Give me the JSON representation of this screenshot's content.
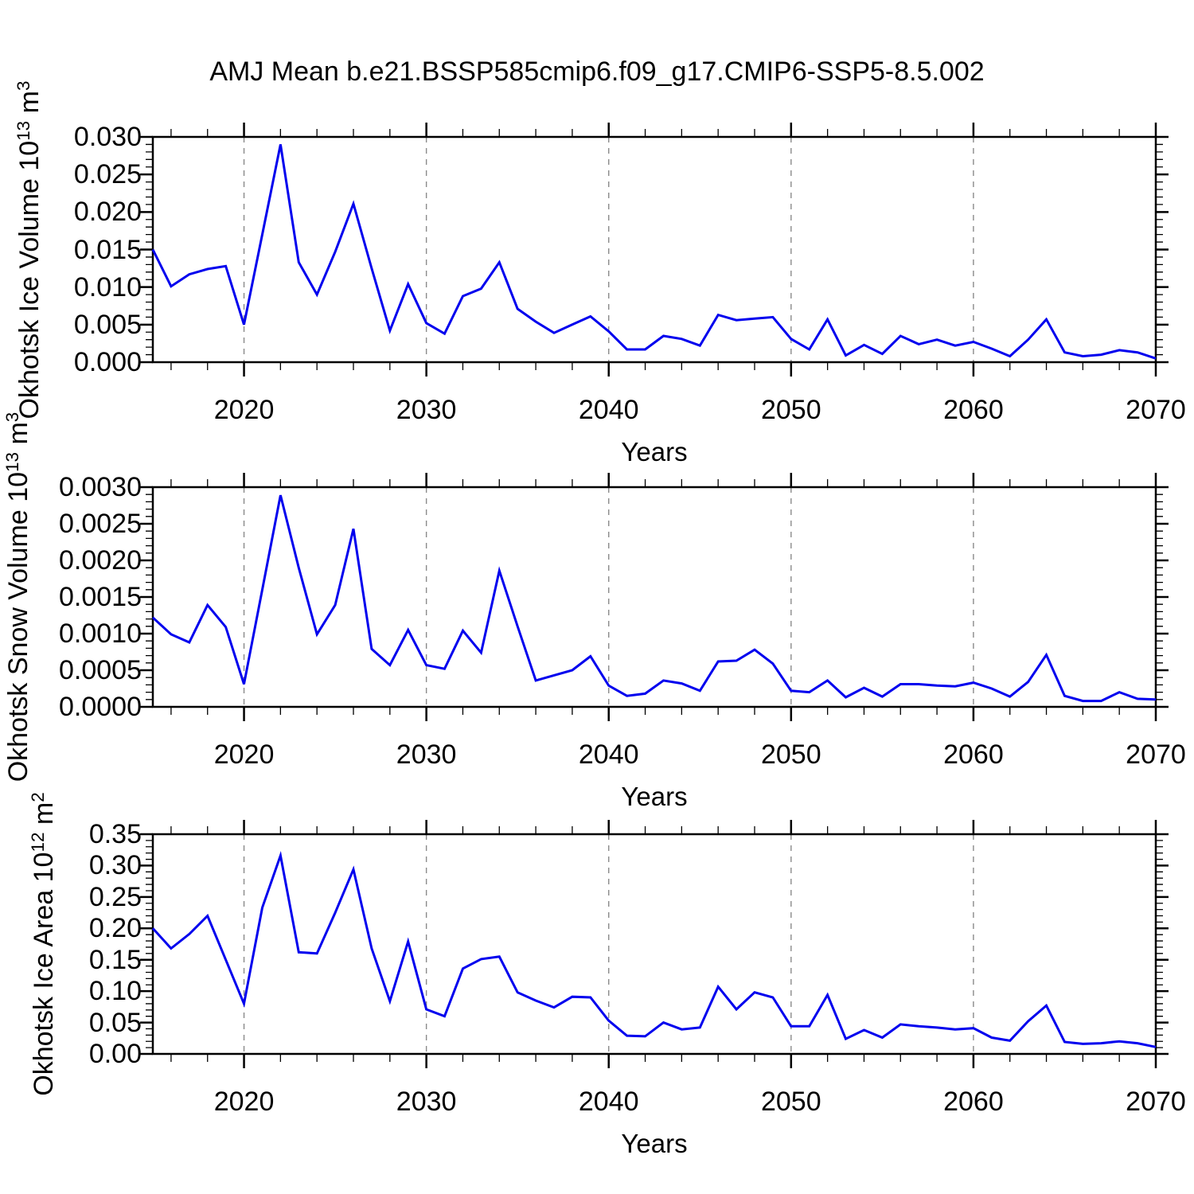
{
  "title": "AMJ Mean b.e21.BSSP585cmip6.f09_g17.CMIP6-SSP5-8.5.002",
  "style": {
    "line_color": "#0000EE",
    "grid_color": "#8a8a8a",
    "axis_color": "#000000",
    "background": "#ffffff"
  },
  "chart_data": [
    {
      "type": "line",
      "xlabel": "Years",
      "ylabel": "Okhotsk Ice Volume 10^13 m^3",
      "ylabel_parts": [
        {
          "t": "Okhotsk Ice Volume 10"
        },
        {
          "t": "13",
          "sup": true
        },
        {
          "t": " m"
        },
        {
          "t": "3",
          "sup": true
        }
      ],
      "xlim": [
        2015,
        2070
      ],
      "ylim": [
        0,
        0.03
      ],
      "xticks": [
        2020,
        2030,
        2040,
        2050,
        2060,
        2070
      ],
      "xtick_labels": [
        "2020",
        "2030",
        "2040",
        "2050",
        "2060",
        "2070"
      ],
      "x_minor_step": 2,
      "yticks": [
        0.0,
        0.005,
        0.01,
        0.015,
        0.02,
        0.025,
        0.03
      ],
      "ytick_labels": [
        "0.000",
        "0.005",
        "0.010",
        "0.015",
        "0.020",
        "0.025",
        "0.030"
      ],
      "y_minor_step": 0.001,
      "gridlines_x": [
        2020,
        2030,
        2040,
        2050,
        2060
      ],
      "grid_dashed": true,
      "legend": "none",
      "years": [
        2015,
        2016,
        2017,
        2018,
        2019,
        2020,
        2021,
        2022,
        2023,
        2024,
        2025,
        2026,
        2027,
        2028,
        2029,
        2030,
        2031,
        2032,
        2033,
        2034,
        2035,
        2036,
        2037,
        2038,
        2039,
        2040,
        2041,
        2042,
        2043,
        2044,
        2045,
        2046,
        2047,
        2048,
        2049,
        2050,
        2051,
        2052,
        2053,
        2054,
        2055,
        2056,
        2057,
        2058,
        2059,
        2060,
        2061,
        2062,
        2063,
        2064,
        2065,
        2066,
        2067,
        2068,
        2069,
        2070
      ],
      "values": [
        0.015,
        0.0101,
        0.0117,
        0.0124,
        0.0128,
        0.005,
        0.017,
        0.029,
        0.0133,
        0.009,
        0.0147,
        0.0211,
        0.0125,
        0.0042,
        0.0104,
        0.0052,
        0.0038,
        0.0088,
        0.0098,
        0.0133,
        0.0071,
        0.0054,
        0.0039,
        0.005,
        0.0061,
        0.0041,
        0.0017,
        0.0017,
        0.0035,
        0.0031,
        0.0022,
        0.0063,
        0.0056,
        0.0058,
        0.006,
        0.0031,
        0.0017,
        0.0057,
        0.0009,
        0.0023,
        0.0011,
        0.0035,
        0.0024,
        0.003,
        0.0022,
        0.0027,
        0.0018,
        0.0008,
        0.003,
        0.0057,
        0.0013,
        0.0008,
        0.001,
        0.0016,
        0.0013,
        0.0005
      ]
    },
    {
      "type": "line",
      "xlabel": "Years",
      "ylabel": "Okhotsk Snow Volume 10^13 m^3",
      "ylabel_parts": [
        {
          "t": "Okhotsk Snow Volume 10"
        },
        {
          "t": "13",
          "sup": true
        },
        {
          "t": " m"
        },
        {
          "t": "3",
          "sup": true
        }
      ],
      "xlim": [
        2015,
        2070
      ],
      "ylim": [
        0,
        0.003
      ],
      "xticks": [
        2020,
        2030,
        2040,
        2050,
        2060,
        2070
      ],
      "xtick_labels": [
        "2020",
        "2030",
        "2040",
        "2050",
        "2060",
        "2070"
      ],
      "x_minor_step": 2,
      "yticks": [
        0.0,
        0.0005,
        0.001,
        0.0015,
        0.002,
        0.0025,
        0.003
      ],
      "ytick_labels": [
        "0.0000",
        "0.0005",
        "0.0010",
        "0.0015",
        "0.0020",
        "0.0025",
        "0.0030"
      ],
      "y_minor_step": 0.0001,
      "gridlines_x": [
        2020,
        2030,
        2040,
        2050,
        2060
      ],
      "grid_dashed": true,
      "legend": "none",
      "years": [
        2015,
        2016,
        2017,
        2018,
        2019,
        2020,
        2021,
        2022,
        2023,
        2024,
        2025,
        2026,
        2027,
        2028,
        2029,
        2030,
        2031,
        2032,
        2033,
        2034,
        2035,
        2036,
        2037,
        2038,
        2039,
        2040,
        2041,
        2042,
        2043,
        2044,
        2045,
        2046,
        2047,
        2048,
        2049,
        2050,
        2051,
        2052,
        2053,
        2054,
        2055,
        2056,
        2057,
        2058,
        2059,
        2060,
        2061,
        2062,
        2063,
        2064,
        2065,
        2066,
        2067,
        2068,
        2069,
        2070
      ],
      "values": [
        0.00122,
        0.00099,
        0.00088,
        0.00139,
        0.00109,
        0.00031,
        0.0016,
        0.00289,
        0.0019,
        0.00099,
        0.00139,
        0.00243,
        0.00079,
        0.00057,
        0.00105,
        0.00057,
        0.00052,
        0.00104,
        0.00074,
        0.00186,
        0.0011,
        0.00036,
        0.00043,
        0.0005,
        0.00069,
        0.00029,
        0.00015,
        0.00018,
        0.00036,
        0.00032,
        0.00022,
        0.00062,
        0.00063,
        0.00078,
        0.00059,
        0.00022,
        0.0002,
        0.00036,
        0.00013,
        0.00026,
        0.00014,
        0.00031,
        0.00031,
        0.00029,
        0.00028,
        0.00033,
        0.00025,
        0.00014,
        0.00034,
        0.00071,
        0.00015,
        8e-05,
        8e-05,
        0.0002,
        0.00011,
        0.0001
      ]
    },
    {
      "type": "line",
      "xlabel": "Years",
      "ylabel": "Okhotsk Ice Area 10^12 m^2",
      "ylabel_parts": [
        {
          "t": "Okhotsk Ice Area 10"
        },
        {
          "t": "12",
          "sup": true
        },
        {
          "t": " m"
        },
        {
          "t": "2",
          "sup": true
        }
      ],
      "xlim": [
        2015,
        2070
      ],
      "ylim": [
        0,
        0.35
      ],
      "xticks": [
        2020,
        2030,
        2040,
        2050,
        2060,
        2070
      ],
      "xtick_labels": [
        "2020",
        "2030",
        "2040",
        "2050",
        "2060",
        "2070"
      ],
      "x_minor_step": 2,
      "yticks": [
        0.0,
        0.05,
        0.1,
        0.15,
        0.2,
        0.25,
        0.3,
        0.35
      ],
      "ytick_labels": [
        "0.00",
        "0.05",
        "0.10",
        "0.15",
        "0.20",
        "0.25",
        "0.30",
        "0.35"
      ],
      "y_minor_step": 0.01,
      "gridlines_x": [
        2020,
        2030,
        2040,
        2050,
        2060
      ],
      "grid_dashed": true,
      "legend": "none",
      "years": [
        2015,
        2016,
        2017,
        2018,
        2019,
        2020,
        2021,
        2022,
        2023,
        2024,
        2025,
        2026,
        2027,
        2028,
        2029,
        2030,
        2031,
        2032,
        2033,
        2034,
        2035,
        2036,
        2037,
        2038,
        2039,
        2040,
        2041,
        2042,
        2043,
        2044,
        2045,
        2046,
        2047,
        2048,
        2049,
        2050,
        2051,
        2052,
        2053,
        2054,
        2055,
        2056,
        2057,
        2058,
        2059,
        2060,
        2061,
        2062,
        2063,
        2064,
        2065,
        2066,
        2067,
        2068,
        2069,
        2070
      ],
      "values": [
        0.2,
        0.168,
        0.191,
        0.22,
        0.15,
        0.08,
        0.233,
        0.316,
        0.162,
        0.16,
        0.225,
        0.294,
        0.168,
        0.084,
        0.179,
        0.071,
        0.06,
        0.136,
        0.151,
        0.155,
        0.098,
        0.085,
        0.074,
        0.091,
        0.09,
        0.053,
        0.029,
        0.028,
        0.05,
        0.039,
        0.042,
        0.107,
        0.071,
        0.098,
        0.09,
        0.044,
        0.044,
        0.094,
        0.024,
        0.038,
        0.026,
        0.047,
        0.044,
        0.042,
        0.039,
        0.041,
        0.026,
        0.021,
        0.052,
        0.077,
        0.019,
        0.016,
        0.017,
        0.02,
        0.017,
        0.011
      ]
    }
  ]
}
